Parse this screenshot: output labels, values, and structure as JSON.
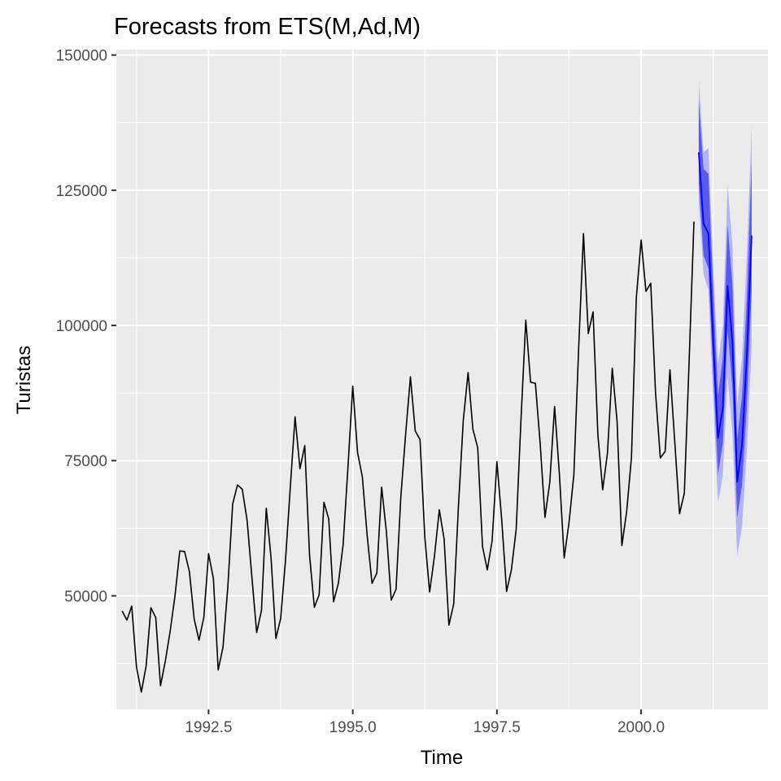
{
  "chart_data": {
    "type": "line",
    "title": "Forecasts from ETS(M,Ad,M)",
    "xlabel": "Time",
    "ylabel": "Turistas",
    "xlim": [
      1990.9,
      2002.2
    ],
    "ylim": [
      29000,
      151000
    ],
    "xticks": [
      1992.5,
      1995.0,
      1997.5,
      2000.0
    ],
    "xtick_labels": [
      "1992.5",
      "1995.0",
      "1997.5",
      "2000.0"
    ],
    "yticks": [
      50000,
      75000,
      100000,
      125000,
      150000
    ],
    "ytick_labels": [
      "50000",
      "75000",
      "100000",
      "125000",
      "150000"
    ],
    "grid": true,
    "legend": "none",
    "colors": {
      "panel": "#ebebeb",
      "grid_major": "#ffffff",
      "observed": "#000000",
      "forecast_line": "#0000ff",
      "pi80_fill": "#5959eb",
      "pi95_fill": "#b3b3f5"
    },
    "observed": {
      "start": 1991.0,
      "frequency": 12,
      "values": [
        47200,
        45500,
        48100,
        36800,
        32200,
        37000,
        47800,
        46000,
        33400,
        38000,
        43500,
        50000,
        58300,
        58200,
        54500,
        45700,
        41800,
        46000,
        57800,
        53200,
        36300,
        40500,
        51500,
        67000,
        70500,
        69700,
        64000,
        53500,
        43200,
        47300,
        66200,
        57000,
        42100,
        45800,
        56500,
        70000,
        83100,
        73500,
        77800,
        57500,
        47900,
        50200,
        67300,
        64200,
        48900,
        52300,
        59500,
        73800,
        88800,
        76500,
        72000,
        61200,
        52300,
        54200,
        70100,
        61800,
        49200,
        51200,
        68300,
        79900,
        90500,
        80500,
        78900,
        60800,
        50700,
        57300,
        65900,
        60500,
        44600,
        48500,
        66800,
        82500,
        91300,
        80800,
        77400,
        59100,
        54800,
        60200,
        74800,
        64100,
        50800,
        54800,
        62300,
        82600,
        101000,
        89500,
        89300,
        78100,
        64500,
        71000,
        85000,
        72500,
        57000,
        63500,
        72400,
        95800,
        117000,
        98500,
        102500,
        79800,
        69600,
        76400,
        92100,
        82300,
        59300,
        65600,
        75600,
        105000,
        115800,
        106300,
        107800,
        87500,
        75500,
        76700,
        91800,
        78500,
        65200,
        69000,
        93500,
        119200
      ]
    },
    "forecast": {
      "start": 2001.0,
      "frequency": 12,
      "mean": [
        132000,
        118800,
        117000,
        97000,
        79200,
        84800,
        107300,
        97000,
        71100,
        77900,
        94300,
        116600
      ],
      "lo80": [
        126500,
        113000,
        110500,
        91000,
        72500,
        78200,
        99000,
        88500,
        64500,
        70500,
        85000,
        106500
      ],
      "hi80": [
        141500,
        129000,
        128000,
        106500,
        87000,
        94000,
        118500,
        107500,
        79000,
        87000,
        105000,
        130000
      ],
      "lo95": [
        123000,
        109500,
        106500,
        86000,
        67200,
        72300,
        90500,
        80000,
        57500,
        62800,
        76700,
        95800
      ],
      "hi95": [
        145300,
        132000,
        132800,
        111000,
        92800,
        100000,
        126000,
        114800,
        85400,
        94000,
        113200,
        136800
      ]
    }
  }
}
